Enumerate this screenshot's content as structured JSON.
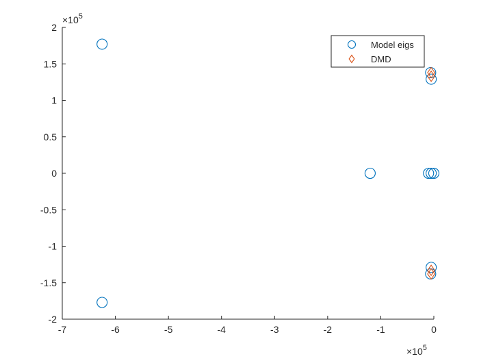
{
  "chart_data": {
    "type": "scatter",
    "xlim": [
      -7,
      0
    ],
    "ylim": [
      -2,
      2
    ],
    "x_ticks": [
      -7,
      -6,
      -5,
      -4,
      -3,
      -2,
      -1,
      0
    ],
    "y_ticks": [
      -2,
      -1.5,
      -1,
      -0.5,
      0,
      0.5,
      1,
      1.5,
      2
    ],
    "x_tick_labels": [
      "-7",
      "-6",
      "-5",
      "-4",
      "-3",
      "-2",
      "-1",
      "0"
    ],
    "y_tick_labels": [
      "-2",
      "-1.5",
      "-1",
      "-0.5",
      "0",
      "0.5",
      "1",
      "1.5",
      "2"
    ],
    "x_exponent_label": "×10",
    "x_exponent_power": "5",
    "y_exponent_label": "×10",
    "y_exponent_power": "5",
    "grid": false,
    "legend_position": "top-right",
    "series": [
      {
        "name": "Model eigs",
        "marker": "circle",
        "color": "#0072BD",
        "points": [
          {
            "x": -6.25,
            "y": 1.77
          },
          {
            "x": -6.25,
            "y": -1.77
          },
          {
            "x": -1.2,
            "y": 0
          },
          {
            "x": -0.06,
            "y": 1.38
          },
          {
            "x": -0.05,
            "y": 1.29
          },
          {
            "x": -0.06,
            "y": -1.38
          },
          {
            "x": -0.05,
            "y": -1.29
          },
          {
            "x": -0.1,
            "y": 0
          },
          {
            "x": -0.05,
            "y": 0
          },
          {
            "x": 0,
            "y": 0
          }
        ]
      },
      {
        "name": "DMD",
        "marker": "diamond",
        "color": "#D95319",
        "points": [
          {
            "x": -0.05,
            "y": 1.38
          },
          {
            "x": -0.05,
            "y": 1.33
          },
          {
            "x": -0.05,
            "y": -1.38
          },
          {
            "x": -0.05,
            "y": -1.33
          }
        ]
      }
    ]
  }
}
